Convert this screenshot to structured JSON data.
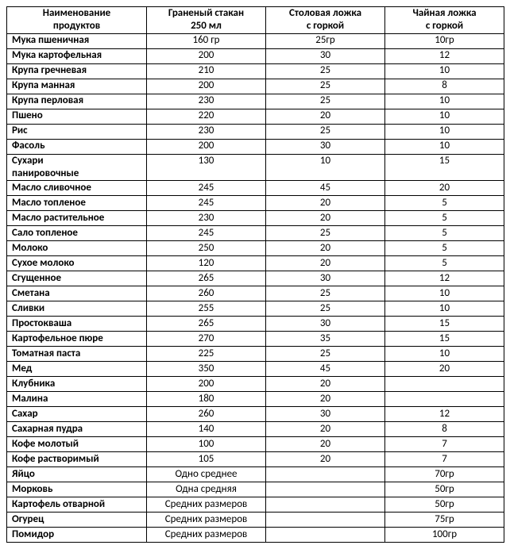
{
  "table": {
    "headers": [
      {
        "line1": "Наименование",
        "line2": "продуктов"
      },
      {
        "line1": "Граненый стакан",
        "line2": "250 мл"
      },
      {
        "line1": "Столовая ложка",
        "line2": "с горкой"
      },
      {
        "line1": "Чайная ложка",
        "line2": "с горкой"
      }
    ],
    "rows": [
      {
        "name": "Мука пшеничная",
        "c1": "160 гр",
        "c2": "25гр",
        "c3": "10гр"
      },
      {
        "name": "Мука картофельная",
        "c1": "200",
        "c2": "30",
        "c3": "12"
      },
      {
        "name": "Крупа гречневая",
        "c1": "210",
        "c2": "25",
        "c3": "10"
      },
      {
        "name": "Крупа манная",
        "c1": "200",
        "c2": "25",
        "c3": "8"
      },
      {
        "name": "Крупа перловая",
        "c1": "230",
        "c2": "25",
        "c3": "10"
      },
      {
        "name": "Пшено",
        "c1": "220",
        "c2": "20",
        "c3": "10"
      },
      {
        "name": "Рис",
        "c1": "230",
        "c2": "25",
        "c3": "10"
      },
      {
        "name": "Фасоль",
        "c1": "200",
        "c2": "30",
        "c3": "10"
      },
      {
        "name": "Сухари панировочные",
        "c1": "130",
        "c2": "10",
        "c3": "15",
        "wrap": true
      },
      {
        "name": "Масло сливочное",
        "c1": "245",
        "c2": "45",
        "c3": "20"
      },
      {
        "name": "Масло топленое",
        "c1": "245",
        "c2": "20",
        "c3": "5"
      },
      {
        "name": "Масло растительное",
        "c1": "230",
        "c2": "20",
        "c3": "5"
      },
      {
        "name": "Сало топленое",
        "c1": "245",
        "c2": "25",
        "c3": "5"
      },
      {
        "name": "Молоко",
        "c1": "250",
        "c2": "20",
        "c3": "5"
      },
      {
        "name": "Сухое молоко",
        "c1": "120",
        "c2": "20",
        "c3": "5"
      },
      {
        "name": "Сгущенное",
        "c1": "265",
        "c2": "30",
        "c3": "12"
      },
      {
        "name": "Сметана",
        "c1": "260",
        "c2": "25",
        "c3": "10"
      },
      {
        "name": "Сливки",
        "c1": "255",
        "c2": "25",
        "c3": "10"
      },
      {
        "name": "Простокваша",
        "c1": "265",
        "c2": "30",
        "c3": "15"
      },
      {
        "name": "Картофельное пюре",
        "c1": "270",
        "c2": "35",
        "c3": "15"
      },
      {
        "name": "Томатная паста",
        "c1": "225",
        "c2": "25",
        "c3": "10"
      },
      {
        "name": "Мед",
        "c1": "350",
        "c2": "45",
        "c3": "20"
      },
      {
        "name": "Клубника",
        "c1": "200",
        "c2": "20",
        "c3": ""
      },
      {
        "name": "Малина",
        "c1": "180",
        "c2": "20",
        "c3": ""
      },
      {
        "name": "Сахар",
        "c1": "260",
        "c2": "30",
        "c3": "12"
      },
      {
        "name": "Сахарная пудра",
        "c1": "140",
        "c2": "20",
        "c3": "8"
      },
      {
        "name": "Кофе молотый",
        "c1": "100",
        "c2": "20",
        "c3": "7"
      },
      {
        "name": "Кофе растворимый",
        "c1": "105",
        "c2": "20",
        "c3": "7"
      },
      {
        "name": "Яйцо",
        "c1": "Одно среднее",
        "c2": "",
        "c3": "70гр"
      },
      {
        "name": "Морковь",
        "c1": "Одна средняя",
        "c2": "",
        "c3": "50гр"
      },
      {
        "name": "Картофель отварной",
        "c1": "Средних размеров",
        "c2": "",
        "c3": "50гр"
      },
      {
        "name": "Огурец",
        "c1": "Средних размеров",
        "c2": "",
        "c3": "75гр"
      },
      {
        "name": "Помидор",
        "c1": "Средних размеров",
        "c2": "",
        "c3": "100гр"
      }
    ]
  }
}
